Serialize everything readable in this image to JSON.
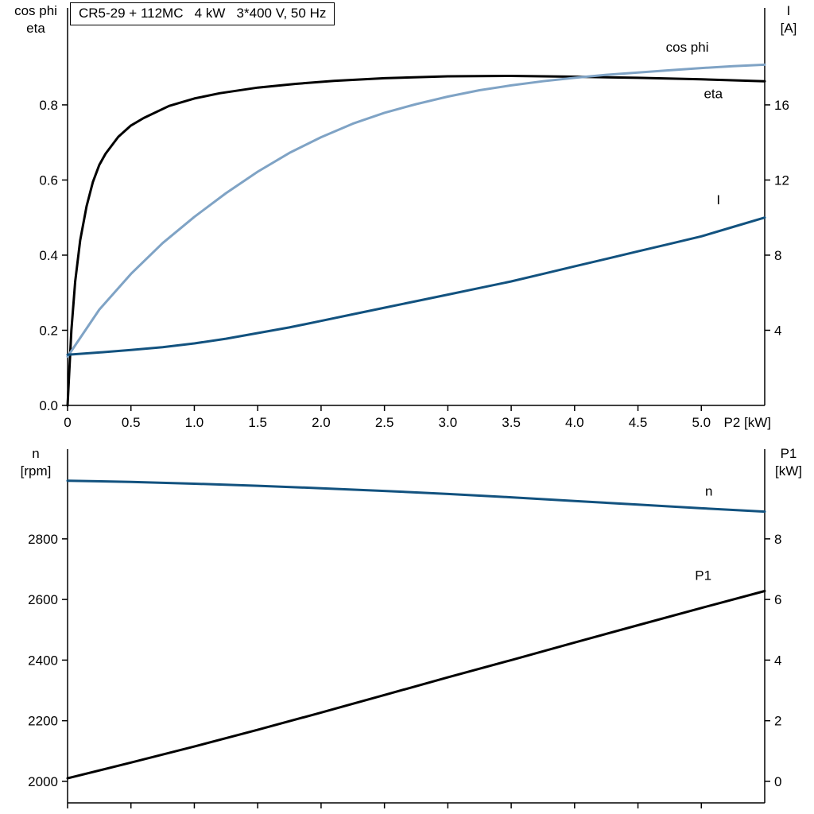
{
  "page": {
    "background": "#ffffff"
  },
  "chart_data": [
    {
      "type": "line",
      "name": "motor-electrical",
      "title": "CR5-29 + 112MC   4 kW   3*400 V, 50 Hz",
      "axes": {
        "left": {
          "label_lines": [
            "cos phi",
            "eta"
          ],
          "lim": [
            0,
            1.058
          ],
          "ticks": [
            0.0,
            0.2,
            0.4,
            0.6,
            0.8
          ],
          "tick_labels": [
            "0.0",
            "0.2",
            "0.4",
            "0.6",
            "0.8"
          ]
        },
        "right": {
          "label_lines": [
            "I",
            "[A]"
          ],
          "lim": [
            0,
            21.16
          ],
          "ticks": [
            4,
            8,
            12,
            16
          ],
          "tick_labels": [
            "4",
            "8",
            "12",
            "16"
          ]
        },
        "x": {
          "label": "P2 [kW]",
          "lim": [
            0,
            5.5
          ],
          "ticks": [
            0,
            0.5,
            1.0,
            1.5,
            2.0,
            2.5,
            3.0,
            3.5,
            4.0,
            4.5,
            5.0
          ],
          "tick_labels": [
            "0",
            "0.5",
            "1.0",
            "1.5",
            "2.0",
            "2.5",
            "3.0",
            "3.5",
            "4.0",
            "4.5",
            "5.0"
          ],
          "show_tick_labels": true
        }
      },
      "series": [
        {
          "name": "eta",
          "axis": "left",
          "color": "#000000",
          "width": 3,
          "label": "eta",
          "label_pos": [
            5.02,
            0.818
          ],
          "points": [
            [
              0,
              0
            ],
            [
              0.03,
              0.2
            ],
            [
              0.06,
              0.33
            ],
            [
              0.1,
              0.44
            ],
            [
              0.15,
              0.53
            ],
            [
              0.2,
              0.595
            ],
            [
              0.25,
              0.64
            ],
            [
              0.3,
              0.67
            ],
            [
              0.4,
              0.715
            ],
            [
              0.5,
              0.745
            ],
            [
              0.6,
              0.765
            ],
            [
              0.8,
              0.797
            ],
            [
              1.0,
              0.817
            ],
            [
              1.2,
              0.831
            ],
            [
              1.5,
              0.846
            ],
            [
              1.8,
              0.856
            ],
            [
              2.1,
              0.864
            ],
            [
              2.5,
              0.871
            ],
            [
              3.0,
              0.876
            ],
            [
              3.5,
              0.877
            ],
            [
              4.0,
              0.875
            ],
            [
              4.5,
              0.872
            ],
            [
              5.0,
              0.868
            ],
            [
              5.5,
              0.863
            ]
          ]
        },
        {
          "name": "cos-phi",
          "axis": "left",
          "color": "#7fa3c5",
          "width": 3,
          "label": "cos phi",
          "label_pos": [
            4.72,
            0.942
          ],
          "points": [
            [
              0,
              0.13
            ],
            [
              0.25,
              0.255
            ],
            [
              0.5,
              0.35
            ],
            [
              0.75,
              0.432
            ],
            [
              1.0,
              0.502
            ],
            [
              1.25,
              0.565
            ],
            [
              1.5,
              0.622
            ],
            [
              1.75,
              0.672
            ],
            [
              2.0,
              0.714
            ],
            [
              2.25,
              0.75
            ],
            [
              2.5,
              0.779
            ],
            [
              2.75,
              0.802
            ],
            [
              3.0,
              0.822
            ],
            [
              3.25,
              0.839
            ],
            [
              3.5,
              0.852
            ],
            [
              3.75,
              0.863
            ],
            [
              4.0,
              0.872
            ],
            [
              4.25,
              0.88
            ],
            [
              4.5,
              0.886
            ],
            [
              4.75,
              0.892
            ],
            [
              5.0,
              0.898
            ],
            [
              5.25,
              0.903
            ],
            [
              5.5,
              0.907
            ]
          ]
        },
        {
          "name": "current",
          "axis": "right",
          "color": "#12527f",
          "width": 3,
          "label": "I",
          "label_pos": [
            5.12,
            10.7
          ],
          "points": [
            [
              0,
              2.7
            ],
            [
              0.25,
              2.82
            ],
            [
              0.5,
              2.95
            ],
            [
              0.75,
              3.1
            ],
            [
              1.0,
              3.3
            ],
            [
              1.25,
              3.55
            ],
            [
              1.5,
              3.85
            ],
            [
              1.75,
              4.15
            ],
            [
              2.0,
              4.5
            ],
            [
              2.25,
              4.85
            ],
            [
              2.5,
              5.2
            ],
            [
              2.75,
              5.55
            ],
            [
              3.0,
              5.9
            ],
            [
              3.25,
              6.25
            ],
            [
              3.5,
              6.6
            ],
            [
              3.75,
              7.0
            ],
            [
              4.0,
              7.4
            ],
            [
              4.25,
              7.8
            ],
            [
              4.5,
              8.2
            ],
            [
              4.75,
              8.6
            ],
            [
              5.0,
              9.0
            ],
            [
              5.25,
              9.5
            ],
            [
              5.5,
              10.0
            ]
          ]
        }
      ]
    },
    {
      "type": "line",
      "name": "speed-power",
      "title": "",
      "axes": {
        "left": {
          "label_lines": [
            "n",
            "[rpm]"
          ],
          "lim": [
            1929,
            3096
          ],
          "ticks": [
            2000,
            2200,
            2400,
            2600,
            2800
          ],
          "tick_labels": [
            "2000",
            "2200",
            "2400",
            "2600",
            "2800"
          ]
        },
        "right": {
          "label_lines": [
            "P1",
            "[kW]"
          ],
          "lim": [
            -0.71,
            10.96
          ],
          "ticks": [
            0,
            2,
            4,
            6,
            8
          ],
          "tick_labels": [
            "0",
            "2",
            "4",
            "6",
            "8"
          ]
        },
        "x": {
          "label": "",
          "lim": [
            0,
            5.5
          ],
          "ticks": [
            0,
            0.5,
            1.0,
            1.5,
            2.0,
            2.5,
            3.0,
            3.5,
            4.0,
            4.5,
            5.0
          ],
          "tick_labels": [
            "0",
            "0.5",
            "1.0",
            "1.5",
            "2.0",
            "2.5",
            "3.0",
            "3.5",
            "4.0",
            "4.5",
            "5.0"
          ],
          "show_tick_labels": false
        }
      },
      "series": [
        {
          "name": "speed",
          "axis": "left",
          "color": "#12527f",
          "width": 3,
          "label": "n",
          "label_pos": [
            5.03,
            2942
          ],
          "points": [
            [
              0,
              2992
            ],
            [
              0.5,
              2988
            ],
            [
              1.0,
              2982
            ],
            [
              1.5,
              2975
            ],
            [
              2.0,
              2967
            ],
            [
              2.5,
              2958
            ],
            [
              3.0,
              2948
            ],
            [
              3.5,
              2937
            ],
            [
              4.0,
              2925
            ],
            [
              4.5,
              2913
            ],
            [
              5.0,
              2901
            ],
            [
              5.5,
              2890
            ]
          ]
        },
        {
          "name": "input-power",
          "axis": "right",
          "color": "#000000",
          "width": 3,
          "label": "P1",
          "label_pos": [
            4.95,
            6.65
          ],
          "points": [
            [
              0,
              0.1
            ],
            [
              0.5,
              0.62
            ],
            [
              1.0,
              1.15
            ],
            [
              1.5,
              1.7
            ],
            [
              2.0,
              2.27
            ],
            [
              2.5,
              2.85
            ],
            [
              3.0,
              3.43
            ],
            [
              3.5,
              4.0
            ],
            [
              4.0,
              4.58
            ],
            [
              4.5,
              5.15
            ],
            [
              5.0,
              5.72
            ],
            [
              5.5,
              6.28
            ]
          ]
        }
      ]
    }
  ]
}
